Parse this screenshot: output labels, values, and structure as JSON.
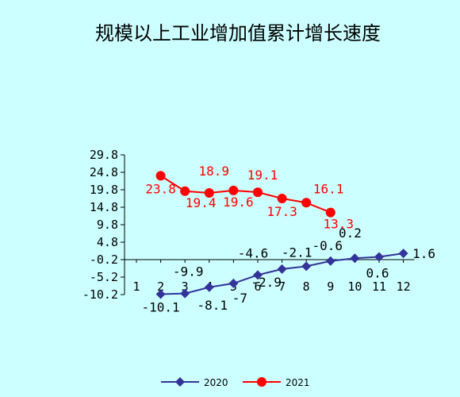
{
  "chart_data": {
    "type": "line",
    "title": "规模以上工业增加值累计增长速度",
    "xlabel": "",
    "ylabel": "",
    "categories": [
      "1",
      "2",
      "3",
      "4",
      "5",
      "6",
      "7",
      "8",
      "9",
      "10",
      "11",
      "12"
    ],
    "ylim": [
      -10.2,
      29.8
    ],
    "yticks": [
      "29.8",
      "24.8",
      "19.8",
      "14.8",
      "9.8",
      "4.8",
      "-0.2",
      "-5.2",
      "-10.2"
    ],
    "grid": false,
    "legend_position": "bottom",
    "series": [
      {
        "name": "2020",
        "color": "#333399",
        "marker": "diamond",
        "values": [
          null,
          -10.1,
          -9.9,
          -8.1,
          -7,
          -4.6,
          -2.9,
          -2.1,
          -0.6,
          0.2,
          0.6,
          1.6
        ],
        "labels": [
          "",
          "-10.1",
          "-9.9",
          "-8.1",
          "-7",
          "-4.6",
          "-2.9",
          "-2.1",
          "-0.6",
          "0.2",
          "0.6",
          "1.6"
        ]
      },
      {
        "name": "2021",
        "color": "#ff0000",
        "marker": "circle",
        "values": [
          null,
          23.8,
          19.4,
          18.9,
          19.6,
          19.1,
          17.3,
          16.1,
          13.3,
          null,
          null,
          null
        ],
        "labels": [
          "",
          "23.8",
          "19.4",
          "18.9",
          "19.6",
          "19.1",
          "17.3",
          "16.1",
          "13.3",
          "",
          "",
          ""
        ]
      }
    ]
  }
}
